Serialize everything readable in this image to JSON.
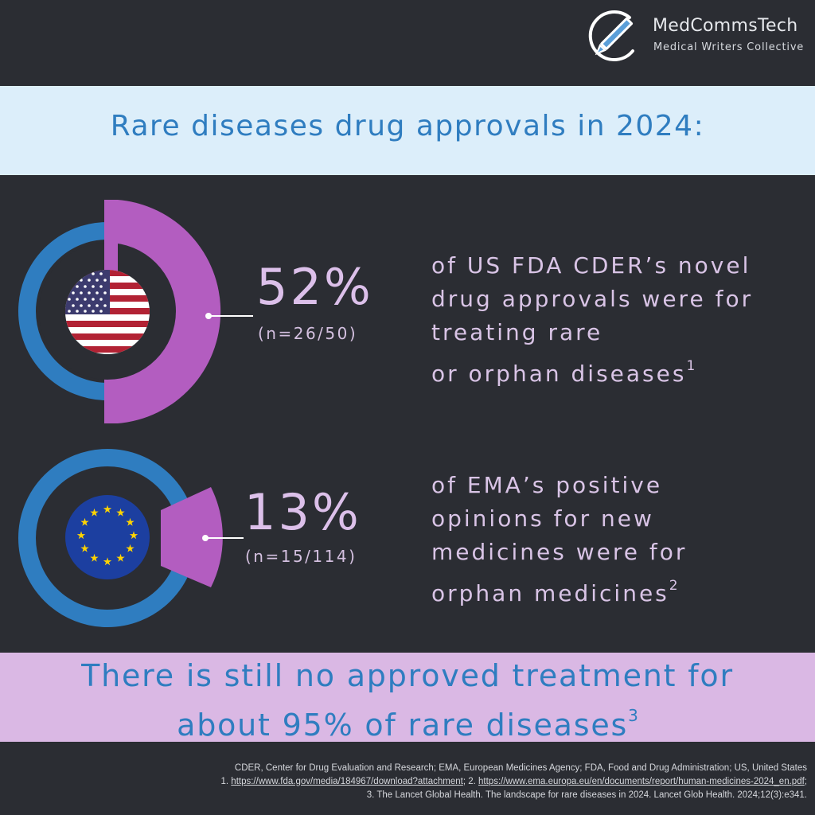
{
  "brand": {
    "name": "MedCommsTech",
    "tagline": "Medical Writers Collective",
    "icon": "pen-icon"
  },
  "title": "Rare diseases drug approvals in 2024:",
  "stats": [
    {
      "flag": "us-flag-icon",
      "percent_label": "52%",
      "percent_value": 52,
      "count": "(n=26/50)",
      "description_lines": [
        "of US FDA CDER’s novel",
        "drug approvals were for",
        "treating rare",
        "or orphan diseases"
      ],
      "ref": "1"
    },
    {
      "flag": "eu-flag-icon",
      "percent_label": "13%",
      "percent_value": 13,
      "count": "(n=15/114)",
      "description_lines": [
        "of EMA’s positive",
        "opinions for new",
        "medicines were for",
        "orphan medicines"
      ],
      "ref": "2"
    }
  ],
  "bottom": {
    "line1": "There is still no approved treatment for",
    "line2": "about 95% of rare diseases",
    "ref": "3"
  },
  "footer": {
    "abbreviations": "CDER, Center for Drug Evaluation and Research; EMA, European Medicines Agency; FDA, Food and Drug Administration; US, United States",
    "ref1_prefix": "1. ",
    "ref1_url": "https://www.fda.gov/media/184967/download?attachment",
    "ref2_prefix": "; 2. ",
    "ref2_url": "https://www.ema.europa.eu/en/documents/report/human-medicines-2024_en.pdf",
    "ref2_suffix": ";",
    "ref3": "3. The Lancet Global Health. The landscape for rare diseases in 2024. Lancet Glob Health. 2024;12(3):e341."
  },
  "colors": {
    "background": "#2b2d33",
    "ring_blue": "#2f7dc0",
    "wedge_purple": "#b35dc0",
    "title_band": "#dceefa",
    "bottom_band": "#dab8e4",
    "text_lilac": "#dcc0ea"
  }
}
